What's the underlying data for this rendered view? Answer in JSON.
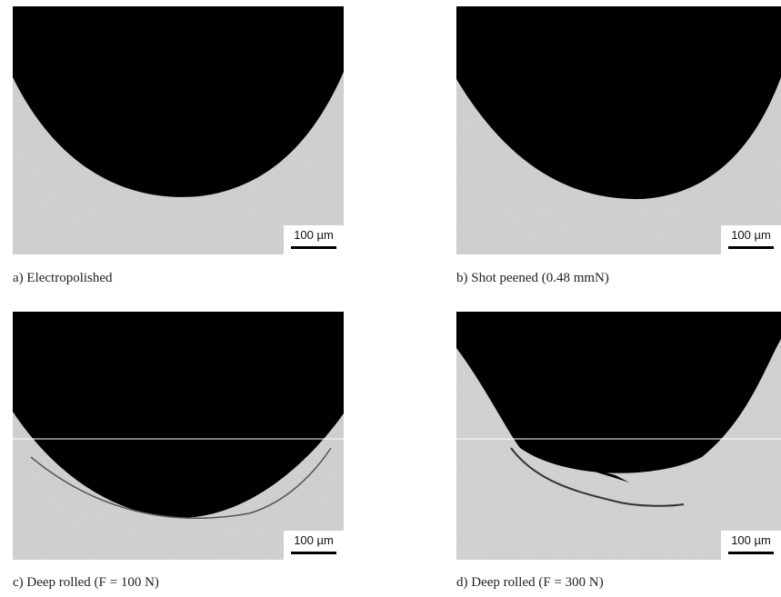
{
  "panels": [
    {
      "caption": "a) Electropolished",
      "scale_bar": "100 µm"
    },
    {
      "caption": "b) Shot peened (0.48 mmN)",
      "scale_bar": "100 µm"
    },
    {
      "caption": "c) Deep rolled (F = 100 N)",
      "scale_bar": "100 µm"
    },
    {
      "caption": "d) Deep rolled (F = 300 N)",
      "scale_bar": "100 µm"
    }
  ]
}
